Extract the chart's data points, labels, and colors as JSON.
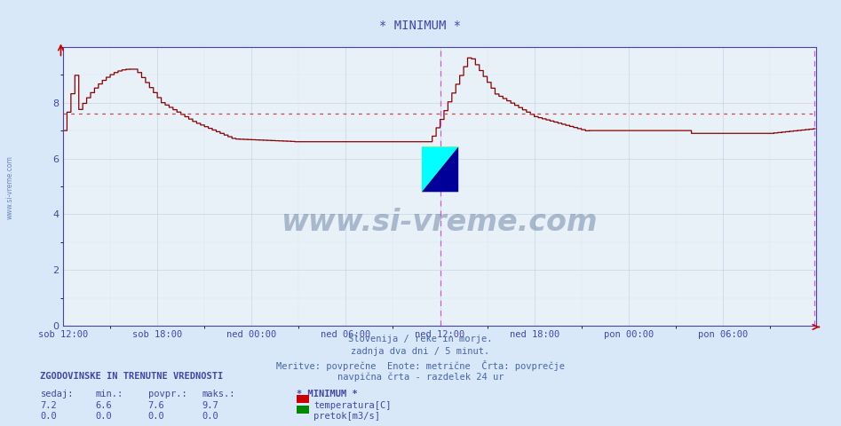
{
  "title": "* MINIMUM *",
  "title_color": "#4444aa",
  "bg_color": "#d8e8f8",
  "plot_bg_color": "#e8f0f8",
  "grid_color_major": "#c0d0e0",
  "grid_color_minor": "#d4e2ee",
  "x_labels": [
    "sob 12:00",
    "sob 18:00",
    "ned 00:00",
    "ned 06:00",
    "ned 12:00",
    "ned 18:00",
    "pon 00:00",
    "pon 06:00"
  ],
  "ylim": [
    0,
    10.0
  ],
  "yticks": [
    0,
    2,
    4,
    6,
    8
  ],
  "avg_line_value": 7.6,
  "avg_line_color": "#cc4444",
  "temp_line_color": "#8b0000",
  "vertical_line_color": "#cc44cc",
  "watermark_text": "www.si-vreme.com",
  "watermark_color": "#1a3a6a",
  "watermark_alpha": 0.3,
  "footer_lines": [
    "Slovenija / reke in morje.",
    "zadnja dva dni / 5 minut.",
    "Meritve: povprečne  Enote: metrične  Črta: povprečje",
    "navpična črta - razdelek 24 ur"
  ],
  "footer_color": "#4466aa",
  "legend_title": "* MINIMUM *",
  "legend_items": [
    {
      "label": "temperatura[C]",
      "color": "#cc0000"
    },
    {
      "label": "pretok[m3/s]",
      "color": "#008800"
    }
  ],
  "stats_header": [
    "sedaj:",
    "min.:",
    "povpr.:",
    "maks.:"
  ],
  "stats_rows": [
    [
      7.2,
      6.6,
      7.6,
      9.7
    ],
    [
      0.0,
      0.0,
      0.0,
      0.0
    ]
  ],
  "stats_label": "ZGODOVINSKE IN TRENUTNE VREDNOSTI",
  "axis_color": "#4444aa",
  "tick_color": "#4444aa"
}
